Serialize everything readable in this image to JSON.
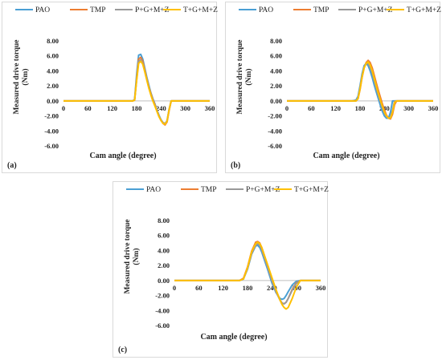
{
  "chart_data": [
    {
      "type": "line",
      "panel_label": "(a)",
      "ylabel": "Measured drive torque\n(Nm)",
      "xlabel": "Cam angle (degree)",
      "xlim": [
        0,
        360
      ],
      "ylim": [
        -6,
        8
      ],
      "xticks": [
        "0",
        "60",
        "120",
        "180",
        "240",
        "300",
        "360"
      ],
      "yticks": [
        "8.00",
        "6.00",
        "4.00",
        "2.00",
        "0.00",
        "-2.00",
        "-4.00",
        "-6.00"
      ],
      "legend_position": "top",
      "series": [
        {
          "name": "PAO",
          "color": "#4a9fd4",
          "x": [
            0,
            170,
            175,
            180,
            185,
            190,
            195,
            200,
            205,
            210,
            215,
            220,
            225,
            230,
            235,
            240,
            245,
            250,
            255,
            260,
            265,
            270,
            275,
            280,
            360
          ],
          "y": [
            0,
            0,
            0.2,
            3.5,
            6.1,
            6.2,
            5.6,
            4.4,
            3.2,
            2.1,
            1.1,
            0.3,
            -0.4,
            -1.2,
            -1.9,
            -2.5,
            -2.9,
            -3.1,
            -2.6,
            -1.2,
            0,
            0,
            0,
            0,
            0
          ]
        },
        {
          "name": "TMP",
          "color": "#ed7d31",
          "x": [
            0,
            170,
            175,
            180,
            185,
            190,
            195,
            200,
            205,
            210,
            215,
            220,
            225,
            230,
            235,
            240,
            245,
            250,
            255,
            260,
            265,
            270,
            275,
            280,
            360
          ],
          "y": [
            0,
            0,
            0.1,
            3.0,
            5.6,
            5.8,
            5.3,
            4.2,
            3.0,
            1.9,
            1.0,
            0.2,
            -0.5,
            -1.3,
            -2.0,
            -2.6,
            -3.0,
            -3.2,
            -2.8,
            -1.3,
            0,
            0,
            0,
            0,
            0
          ]
        },
        {
          "name": "P+G+M+Z",
          "color": "#999999",
          "x": [
            0,
            170,
            175,
            180,
            185,
            190,
            195,
            200,
            205,
            210,
            215,
            220,
            225,
            230,
            235,
            240,
            245,
            250,
            255,
            260,
            265,
            270,
            275,
            280,
            360
          ],
          "y": [
            0,
            0,
            0.1,
            2.8,
            5.3,
            5.5,
            5.0,
            4.0,
            2.9,
            1.8,
            0.9,
            0.1,
            -0.6,
            -1.3,
            -2.0,
            -2.5,
            -2.9,
            -3.0,
            -2.7,
            -1.1,
            0,
            0,
            0,
            0,
            0
          ]
        },
        {
          "name": "T+G+M+Z",
          "color": "#ffc000",
          "x": [
            0,
            170,
            175,
            180,
            185,
            190,
            195,
            200,
            205,
            210,
            215,
            220,
            225,
            230,
            235,
            240,
            245,
            250,
            255,
            260,
            265,
            270,
            275,
            280,
            360
          ],
          "y": [
            0,
            0,
            0.1,
            2.7,
            5.0,
            5.3,
            4.9,
            3.9,
            2.8,
            1.7,
            0.8,
            0.0,
            -0.7,
            -1.4,
            -2.1,
            -2.6,
            -3.0,
            -3.1,
            -2.7,
            -1.2,
            0,
            0,
            0,
            0,
            0
          ]
        }
      ]
    },
    {
      "type": "line",
      "panel_label": "(b)",
      "ylabel": "Measured drive torque\n(Nm)",
      "xlabel": "Cam angle (degree)",
      "xlim": [
        0,
        360
      ],
      "ylim": [
        -6,
        8
      ],
      "xticks": [
        "0",
        "60",
        "120",
        "180",
        "240",
        "300",
        "360"
      ],
      "yticks": [
        "8.00",
        "6.00",
        "4.00",
        "2.00",
        "0.00",
        "-2.00",
        "-4.00",
        "-6.00"
      ],
      "legend_position": "top",
      "series": [
        {
          "name": "PAO",
          "color": "#4a9fd4",
          "x": [
            0,
            160,
            170,
            175,
            180,
            185,
            190,
            195,
            200,
            205,
            210,
            215,
            220,
            225,
            230,
            235,
            240,
            245,
            250,
            255,
            260,
            265,
            270,
            275,
            360
          ],
          "y": [
            0,
            0,
            0.1,
            0.6,
            2.0,
            3.6,
            4.7,
            5.0,
            4.7,
            4.0,
            3.1,
            2.1,
            1.2,
            0.3,
            -0.6,
            -1.4,
            -2.0,
            -2.3,
            -2.3,
            -1.5,
            0,
            0,
            0,
            0,
            0
          ]
        },
        {
          "name": "TMP",
          "color": "#ed7d31",
          "x": [
            0,
            160,
            170,
            175,
            180,
            185,
            190,
            195,
            200,
            205,
            210,
            215,
            220,
            225,
            230,
            235,
            240,
            245,
            250,
            255,
            260,
            265,
            270,
            275,
            360
          ],
          "y": [
            0,
            0,
            0,
            0.3,
            1.5,
            3.1,
            4.4,
            5.1,
            5.4,
            5.1,
            4.4,
            3.4,
            2.4,
            1.4,
            0.5,
            -0.4,
            -1.2,
            -1.9,
            -2.3,
            -2.4,
            -1.8,
            -0.5,
            0,
            0,
            0
          ]
        },
        {
          "name": "P+G+M+Z",
          "color": "#999999",
          "x": [
            0,
            160,
            170,
            175,
            180,
            185,
            190,
            195,
            200,
            205,
            210,
            215,
            220,
            225,
            230,
            235,
            240,
            245,
            250,
            255,
            260,
            265,
            270,
            275,
            360
          ],
          "y": [
            0,
            0,
            0,
            0.4,
            1.7,
            3.3,
            4.5,
            5.0,
            5.0,
            4.5,
            3.7,
            2.7,
            1.7,
            0.8,
            -0.1,
            -0.9,
            -1.6,
            -2.1,
            -2.3,
            -2.2,
            -1.3,
            0,
            0,
            0,
            0
          ]
        },
        {
          "name": "T+G+M+Z",
          "color": "#ffc000",
          "x": [
            0,
            160,
            170,
            175,
            180,
            185,
            190,
            195,
            200,
            205,
            210,
            215,
            220,
            225,
            230,
            235,
            240,
            245,
            250,
            255,
            260,
            265,
            270,
            275,
            360
          ],
          "y": [
            0,
            0,
            0,
            0.3,
            1.6,
            3.2,
            4.4,
            5.0,
            5.2,
            4.8,
            4.0,
            3.0,
            2.0,
            1.0,
            0.1,
            -0.7,
            -1.5,
            -2.0,
            -2.3,
            -2.3,
            -1.5,
            -0.2,
            0,
            0,
            0
          ]
        }
      ]
    },
    {
      "type": "line",
      "panel_label": "(c)",
      "ylabel": "Measured drive torque\n(Nm)",
      "xlabel": "Cam angle (degree)",
      "xlim": [
        0,
        360
      ],
      "ylim": [
        -6,
        8
      ],
      "xticks": [
        "0",
        "60",
        "120",
        "180",
        "240",
        "300",
        "360"
      ],
      "yticks": [
        "8.00",
        "6.00",
        "4.00",
        "2.00",
        "0.00",
        "-2.00",
        "-4.00",
        "-6.00"
      ],
      "legend_position": "top",
      "series": [
        {
          "name": "PAO",
          "color": "#4a9fd4",
          "x": [
            0,
            150,
            160,
            170,
            180,
            190,
            200,
            205,
            210,
            215,
            220,
            230,
            240,
            250,
            260,
            265,
            270,
            275,
            280,
            290,
            300,
            310,
            360
          ],
          "y": [
            0,
            0,
            0,
            0.2,
            1.5,
            3.5,
            4.6,
            4.7,
            4.4,
            3.8,
            3.0,
            1.4,
            -0.3,
            -1.6,
            -2.4,
            -2.5,
            -2.4,
            -2.0,
            -1.5,
            -0.6,
            -0.1,
            0,
            0
          ]
        },
        {
          "name": "TMP",
          "color": "#ed7d31",
          "x": [
            0,
            150,
            160,
            170,
            180,
            190,
            200,
            205,
            210,
            215,
            220,
            230,
            240,
            250,
            260,
            265,
            270,
            275,
            280,
            290,
            300,
            310,
            360
          ],
          "y": [
            0,
            0,
            0,
            0.3,
            1.8,
            3.9,
            5.1,
            5.2,
            5.0,
            4.4,
            3.6,
            1.9,
            0.2,
            -1.4,
            -2.6,
            -3.0,
            -3.1,
            -2.9,
            -2.4,
            -1.2,
            -0.3,
            0,
            0
          ]
        },
        {
          "name": "P+G+M+Z",
          "color": "#999999",
          "x": [
            0,
            150,
            160,
            170,
            180,
            190,
            200,
            205,
            210,
            215,
            220,
            230,
            240,
            250,
            260,
            265,
            270,
            275,
            280,
            290,
            300,
            310,
            360
          ],
          "y": [
            0,
            0,
            0,
            0.2,
            1.6,
            3.6,
            4.7,
            4.9,
            4.7,
            4.1,
            3.3,
            1.7,
            0.0,
            -1.5,
            -2.6,
            -3.0,
            -3.1,
            -2.9,
            -2.4,
            -1.3,
            -0.4,
            0,
            0
          ]
        },
        {
          "name": "T+G+M+Z",
          "color": "#ffc000",
          "x": [
            0,
            150,
            160,
            170,
            180,
            190,
            200,
            205,
            210,
            215,
            220,
            230,
            240,
            250,
            260,
            265,
            270,
            275,
            280,
            290,
            300,
            310,
            360
          ],
          "y": [
            0,
            0,
            0,
            0.2,
            1.7,
            3.8,
            4.9,
            5.1,
            4.9,
            4.4,
            3.6,
            2.0,
            0.4,
            -1.2,
            -2.6,
            -3.2,
            -3.6,
            -3.8,
            -3.6,
            -2.4,
            -0.9,
            0,
            0
          ]
        }
      ]
    }
  ]
}
